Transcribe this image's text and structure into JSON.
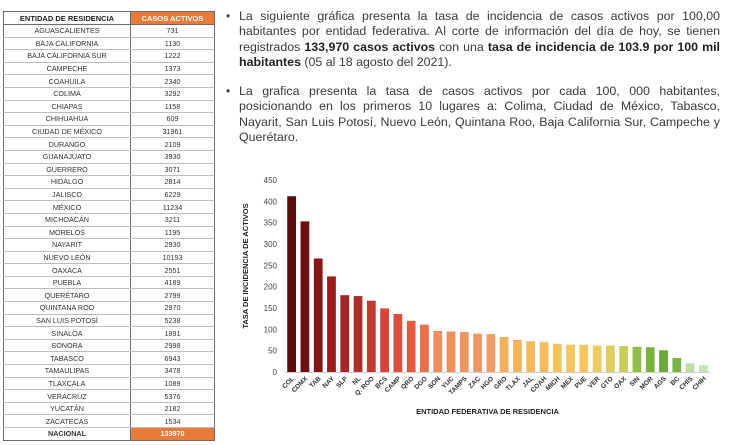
{
  "table": {
    "header_state": "ENTIDAD DE RESIDENCIA",
    "header_cases": "CASOS ACTIVOS",
    "rows": [
      [
        "AGUASCALIENTES",
        "731"
      ],
      [
        "BAJA CALIFORNIA",
        "1130"
      ],
      [
        "BAJA CALIFORNIA SUR",
        "1222"
      ],
      [
        "CAMPECHE",
        "1373"
      ],
      [
        "COAHUILA",
        "2340"
      ],
      [
        "COLIMA",
        "3292"
      ],
      [
        "CHIAPAS",
        "1158"
      ],
      [
        "CHIHUAHUA",
        "609"
      ],
      [
        "CIUDAD DE MÉXICO",
        "31961"
      ],
      [
        "DURANGO",
        "2109"
      ],
      [
        "GUANAJUATO",
        "3930"
      ],
      [
        "GUERRERO",
        "3071"
      ],
      [
        "HIDALGO",
        "2814"
      ],
      [
        "JALISCO",
        "6229"
      ],
      [
        "MÉXICO",
        "11234"
      ],
      [
        "MICHOACÁN",
        "3211"
      ],
      [
        "MORELOS",
        "1195"
      ],
      [
        "NAYARIT",
        "2930"
      ],
      [
        "NUEVO LEÓN",
        "10193"
      ],
      [
        "OAXACA",
        "2551"
      ],
      [
        "PUEBLA",
        "4189"
      ],
      [
        "QUERÉTARO",
        "2799"
      ],
      [
        "QUINTANA ROO",
        "2970"
      ],
      [
        "SAN LUIS POTOSÍ",
        "5238"
      ],
      [
        "SINALOA",
        "1891"
      ],
      [
        "SONORA",
        "2998"
      ],
      [
        "TABASCO",
        "6943"
      ],
      [
        "TAMAULIPAS",
        "3478"
      ],
      [
        "TLAXCALA",
        "1089"
      ],
      [
        "VERACRUZ",
        "5376"
      ],
      [
        "YUCATÁN",
        "2182"
      ],
      [
        "ZACATECAS",
        "1534"
      ]
    ],
    "total_label": "NACIONAL",
    "total_value": "133970",
    "header_accent": "#e87a3a"
  },
  "text": {
    "bullet": "•",
    "p1_a": "La siguiente gráfica presenta la tasa de incidencia de casos activos por 100,00 habitantes por entidad federativa. Al corte de información del día de hoy, se tienen registrados ",
    "p1_b": "133,970 casos activos",
    "p1_c": " con una ",
    "p1_d": "tasa de incidencia de 103.9 por 100 mil habitantes",
    "p1_e": " (05 al 18 agosto del 2021).",
    "p2": "La grafica presenta la tasa de casos activos por cada 100, 000 habitantes, posicionando en los primeros 10 lugares a: Colima, Ciudad de México, Tabasco, Nayarit, San Luis Potosí, Nuevo León, Quintana Roo, Baja California Sur, Campeche y Querétaro."
  },
  "chart_data": {
    "type": "bar",
    "categories": [
      "COL",
      "CDMX",
      "TAB",
      "NAY",
      "SLP",
      "NL",
      "Q. ROO",
      "BCS",
      "CAMP",
      "QRO",
      "DGO",
      "SON",
      "YUC",
      "TAMPS",
      "ZAC",
      "HGO",
      "GRO",
      "TLAX",
      "JAL",
      "COAH",
      "MICH",
      "MEX",
      "PUE",
      "VER",
      "GTO",
      "OAX",
      "SIN",
      "MOR",
      "AGS",
      "BC",
      "CHIS",
      "CHIH"
    ],
    "values": [
      412,
      353,
      266,
      224,
      180,
      178,
      167,
      149,
      136,
      120,
      111,
      96,
      95,
      94,
      90,
      89,
      82,
      75,
      72,
      70,
      66,
      64,
      64,
      62,
      62,
      61,
      59,
      58,
      51,
      33,
      20,
      16
    ],
    "colors": [
      "#5c0a0a",
      "#6e0f0f",
      "#861616",
      "#9c1b1b",
      "#a32525",
      "#b02b2b",
      "#c03a32",
      "#d5443a",
      "#dc4d3e",
      "#e35a40",
      "#e8704a",
      "#ec8f5e",
      "#ee9060",
      "#ef9463",
      "#ef9866",
      "#f09c69",
      "#f4b05c",
      "#f5b45a",
      "#f5b85a",
      "#f6bc5a",
      "#f7c15c",
      "#f7c45e",
      "#f6c760",
      "#eccc62",
      "#dccf60",
      "#c8cd5a",
      "#8cbf45",
      "#7ab33c",
      "#6aa838",
      "#75b548",
      "#bcdca2",
      "#c9e3b3"
    ],
    "ylabel": "TASA DE INCIDENCIA DE ACTIVOS",
    "xlabel": "ENTIDAD FEDERATIVA DE RESIDENCIA",
    "ylim": [
      0,
      450
    ],
    "yticks": [
      "0",
      "50",
      "100",
      "150",
      "200",
      "250",
      "300",
      "350",
      "400",
      "450"
    ],
    "grid": false
  }
}
